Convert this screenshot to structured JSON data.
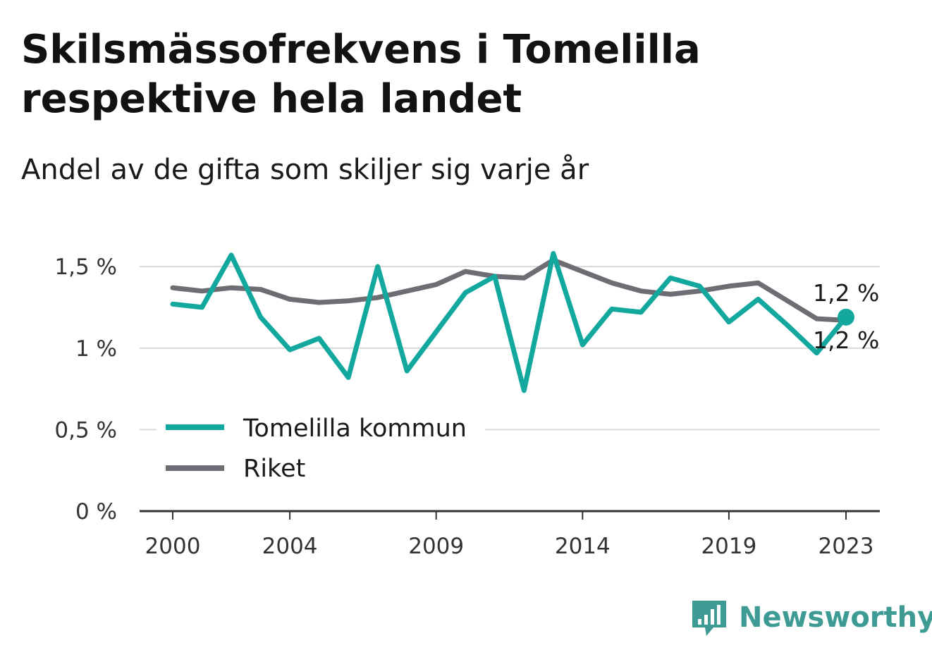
{
  "title": "Skilsmässofrekvens i Tomelilla respektive hela landet",
  "subtitle": "Andel av de gifta som skiljer sig varje år",
  "brand": {
    "name": "Newsworthy",
    "color": "#3d9b94",
    "icon": "bar-chart-speech-bubble-icon"
  },
  "chart_data": {
    "type": "line",
    "x": [
      2000,
      2001,
      2002,
      2003,
      2004,
      2005,
      2006,
      2007,
      2008,
      2009,
      2010,
      2011,
      2012,
      2013,
      2014,
      2015,
      2016,
      2017,
      2018,
      2019,
      2020,
      2021,
      2022,
      2023
    ],
    "x_ticks": [
      2000,
      2004,
      2009,
      2014,
      2019,
      2023
    ],
    "x_tick_labels": [
      "2000",
      "2004",
      "2009",
      "2014",
      "2019",
      "2023"
    ],
    "y_ticks": [
      0,
      0.5,
      1,
      1.5
    ],
    "y_tick_labels": [
      "0 %",
      "0,5 %",
      "1 %",
      "1,5 %"
    ],
    "ylim": [
      0,
      1.6
    ],
    "xlim": [
      2000,
      2023
    ],
    "grid": true,
    "legend_position": "bottom-left",
    "series": [
      {
        "name": "Tomelilla kommun",
        "color": "#13a89e",
        "values": [
          1.27,
          1.25,
          1.57,
          1.19,
          0.99,
          1.06,
          0.82,
          1.5,
          0.86,
          1.1,
          1.34,
          1.44,
          0.74,
          1.58,
          1.02,
          1.24,
          1.22,
          1.43,
          1.38,
          1.16,
          1.3,
          1.14,
          0.97,
          1.19
        ],
        "end_label": "1,2 %"
      },
      {
        "name": "Riket",
        "color": "#6d6d74",
        "values": [
          1.37,
          1.35,
          1.37,
          1.36,
          1.3,
          1.28,
          1.29,
          1.31,
          1.35,
          1.39,
          1.47,
          1.44,
          1.43,
          1.54,
          1.47,
          1.4,
          1.35,
          1.33,
          1.35,
          1.38,
          1.4,
          1.29,
          1.18,
          1.17
        ],
        "end_label": "1,2 %"
      }
    ]
  }
}
